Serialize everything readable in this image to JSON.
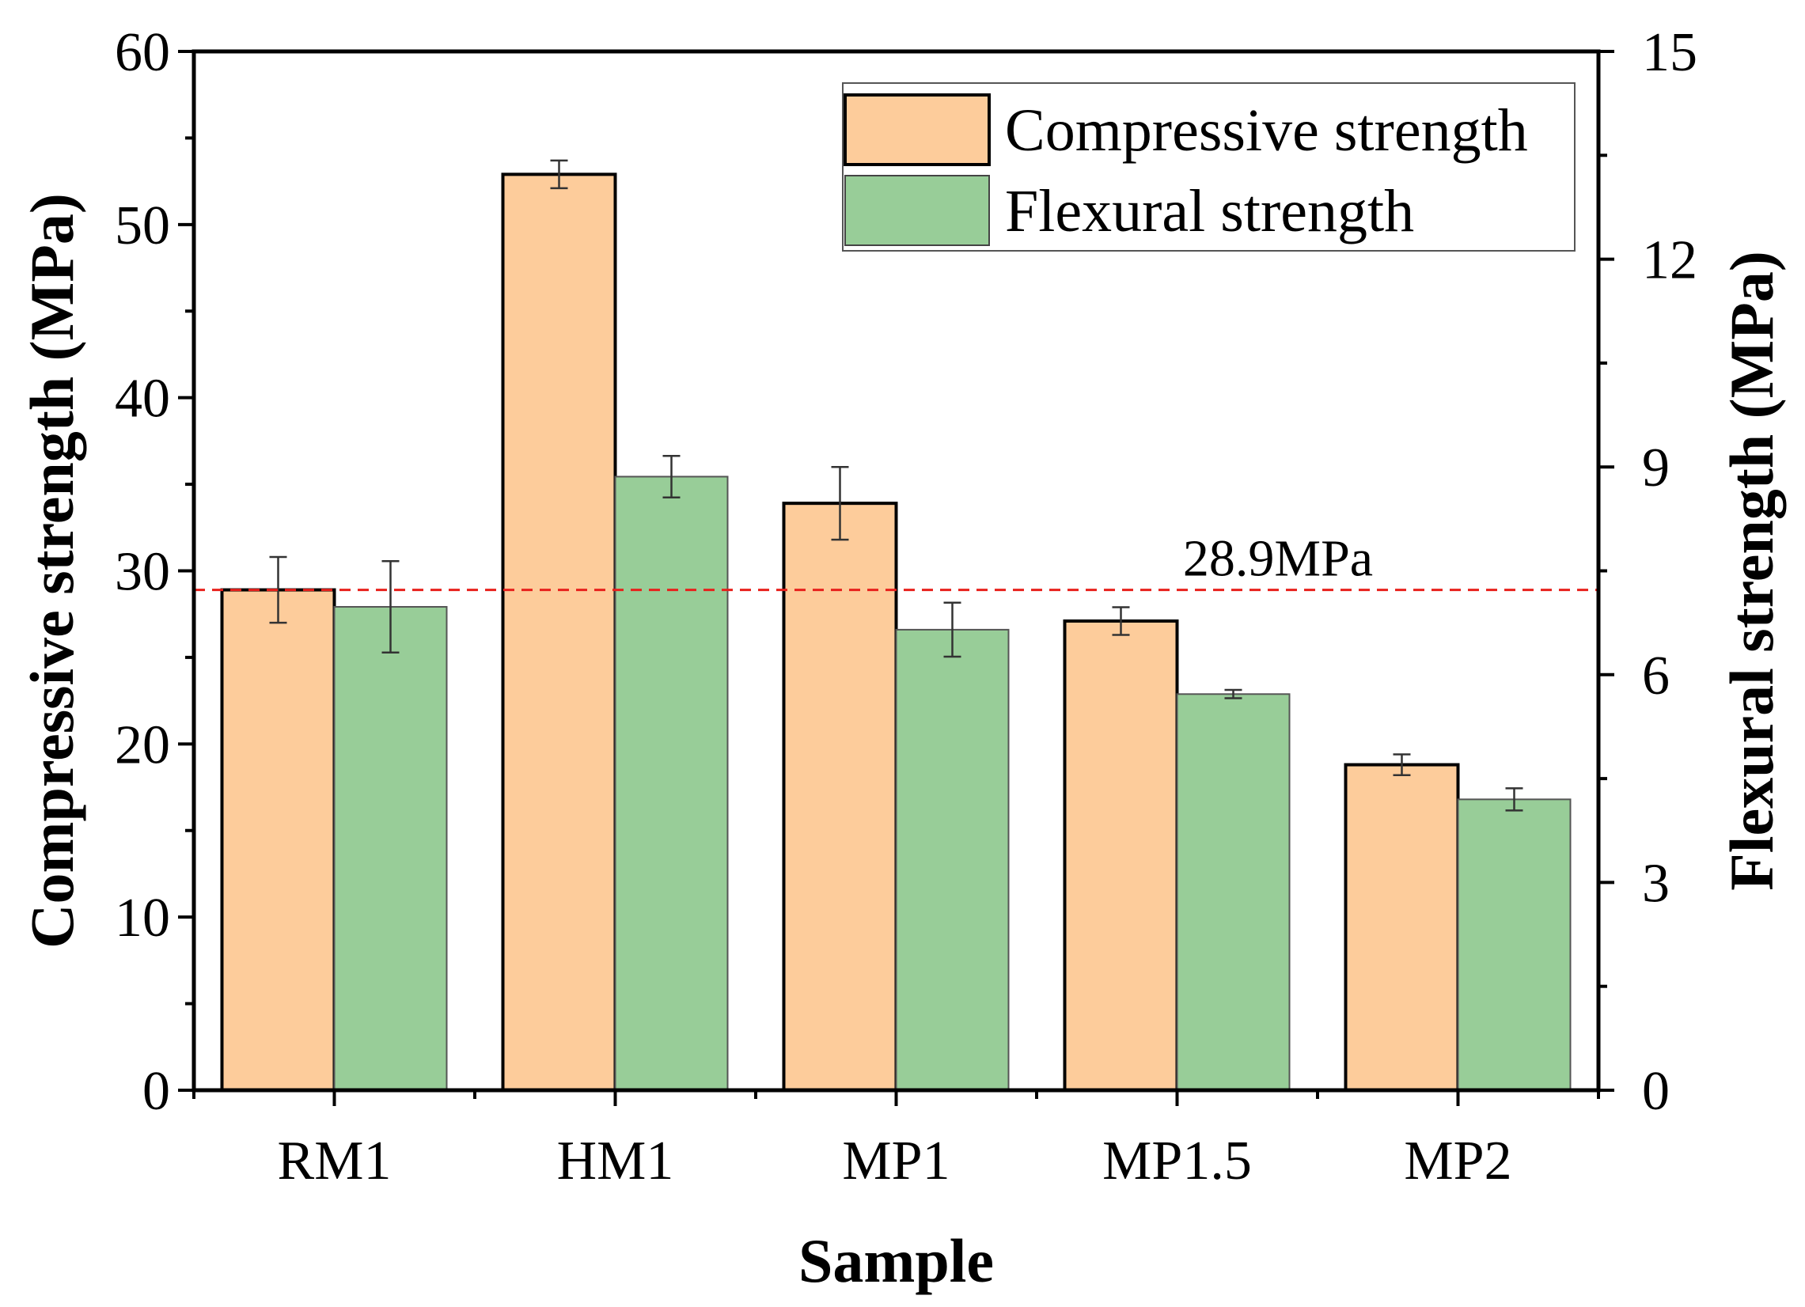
{
  "chart_data": {
    "type": "bar",
    "xlabel": "Sample",
    "ylabel": "Compressive strength (MPa)",
    "ylabel_right": "Flexural strength (MPa)",
    "categories": [
      "RM1",
      "HM1",
      "MP1",
      "MP1.5",
      "MP2"
    ],
    "ylim": [
      0,
      60
    ],
    "ylim_right": [
      0,
      15
    ],
    "yticks": [
      "0",
      "10",
      "20",
      "30",
      "40",
      "50",
      "60"
    ],
    "yticks_right": [
      "0",
      "3",
      "6",
      "9",
      "12",
      "15"
    ],
    "series": [
      {
        "name": "Compressive strength",
        "axis": "left",
        "color": "#fdcc9b",
        "values": [
          28.9,
          52.9,
          33.9,
          27.1,
          18.8
        ],
        "errors": [
          1.9,
          0.8,
          2.1,
          0.8,
          0.6
        ]
      },
      {
        "name": "Flexural strength",
        "axis": "right",
        "color": "#98cd98",
        "values": [
          6.98,
          8.86,
          6.65,
          5.72,
          4.2
        ],
        "errors": [
          0.66,
          0.3,
          0.39,
          0.06,
          0.16
        ]
      }
    ],
    "reference_line": {
      "value": 28.9,
      "axis": "left",
      "label": "28.9MPa",
      "color": "#e8201c"
    },
    "legend": "top-right",
    "grid": false
  }
}
